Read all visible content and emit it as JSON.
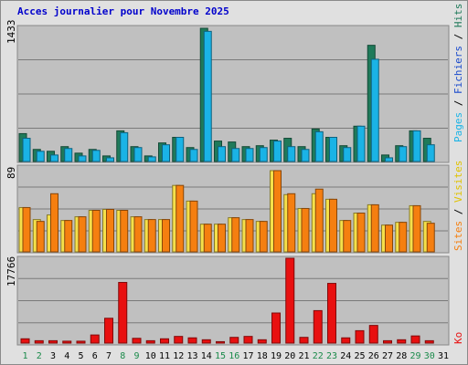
{
  "title": "Acces journalier pour Novembre 2025",
  "colors": {
    "pages": "#1f7a5a",
    "hits": "#1ab3e6",
    "visites": "#f5e04a",
    "sites": "#f57f10",
    "ko": "#e81010",
    "day_label_weekday": "#000000",
    "day_label_weekend": "#1a8a4a",
    "panel_bg": "#c0c0c0",
    "frame_bg": "#e0e0e0"
  },
  "chart_data": [
    {
      "type": "bar",
      "name": "pages_fichiers_hits",
      "ymax_label": "1433",
      "ymax": 1433,
      "legend": [
        "Pages",
        "Fichiers",
        "Hits"
      ],
      "legend_separator": " / ",
      "x": [
        "1",
        "2",
        "3",
        "4",
        "5",
        "6",
        "7",
        "8",
        "9",
        "10",
        "11",
        "12",
        "13",
        "14",
        "15",
        "16",
        "17",
        "18",
        "19",
        "20",
        "21",
        "22",
        "23",
        "24",
        "25",
        "26",
        "27",
        "28",
        "29",
        "30",
        "31"
      ],
      "series": [
        {
          "name": "Pages",
          "values": [
            300,
            130,
            110,
            160,
            90,
            130,
            60,
            330,
            160,
            60,
            200,
            260,
            150,
            1433,
            220,
            210,
            160,
            170,
            230,
            250,
            160,
            350,
            260,
            170,
            380,
            1250,
            70,
            170,
            330,
            250,
            0
          ]
        },
        {
          "name": "Fichiers",
          "values": [
            0,
            0,
            0,
            0,
            0,
            0,
            0,
            0,
            0,
            0,
            0,
            0,
            0,
            0,
            0,
            0,
            0,
            0,
            0,
            0,
            0,
            0,
            0,
            0,
            0,
            0,
            0,
            0,
            0,
            0,
            0
          ]
        },
        {
          "name": "Hits",
          "values": [
            250,
            110,
            70,
            140,
            60,
            120,
            40,
            310,
            150,
            50,
            180,
            260,
            130,
            1400,
            160,
            140,
            140,
            150,
            220,
            160,
            130,
            320,
            260,
            150,
            380,
            1100,
            40,
            160,
            330,
            180,
            0
          ]
        }
      ]
    },
    {
      "type": "bar",
      "name": "visites_sites",
      "ymax_label": "89",
      "ymax": 89,
      "legend": [
        "Visites",
        "Sites"
      ],
      "legend_separator": " / ",
      "x": [
        "1",
        "2",
        "3",
        "4",
        "5",
        "6",
        "7",
        "8",
        "9",
        "10",
        "11",
        "12",
        "13",
        "14",
        "15",
        "16",
        "17",
        "18",
        "19",
        "20",
        "21",
        "22",
        "23",
        "24",
        "25",
        "26",
        "27",
        "28",
        "29",
        "30",
        "31"
      ],
      "series": [
        {
          "name": "Visites",
          "values": [
            48,
            35,
            40,
            34,
            38,
            45,
            46,
            45,
            38,
            35,
            35,
            72,
            55,
            30,
            30,
            37,
            35,
            33,
            88,
            62,
            47,
            63,
            57,
            34,
            42,
            51,
            29,
            32,
            50,
            33,
            0
          ]
        },
        {
          "name": "Sites",
          "values": [
            48,
            33,
            63,
            34,
            38,
            45,
            46,
            45,
            38,
            35,
            35,
            72,
            55,
            30,
            30,
            37,
            35,
            33,
            88,
            63,
            47,
            68,
            57,
            34,
            42,
            51,
            29,
            32,
            50,
            31,
            0
          ]
        }
      ]
    },
    {
      "type": "bar",
      "name": "ko",
      "ymax_label": "17766",
      "ymax": 17766,
      "legend": [
        "Ko"
      ],
      "x": [
        "1",
        "2",
        "3",
        "4",
        "5",
        "6",
        "7",
        "8",
        "9",
        "10",
        "11",
        "12",
        "13",
        "14",
        "15",
        "16",
        "17",
        "18",
        "19",
        "20",
        "21",
        "22",
        "23",
        "24",
        "25",
        "26",
        "27",
        "28",
        "29",
        "30",
        "31"
      ],
      "series": [
        {
          "name": "Ko",
          "values": [
            900,
            500,
            500,
            400,
            400,
            1700,
            5200,
            12700,
            1000,
            500,
            900,
            1400,
            1100,
            700,
            300,
            1200,
            1400,
            700,
            6300,
            17766,
            1200,
            6800,
            12500,
            1100,
            2600,
            3700,
            500,
            700,
            1500,
            500,
            0
          ]
        }
      ]
    }
  ],
  "weekend_days": [
    "1",
    "2",
    "8",
    "9",
    "15",
    "16",
    "22",
    "23",
    "29",
    "30"
  ]
}
